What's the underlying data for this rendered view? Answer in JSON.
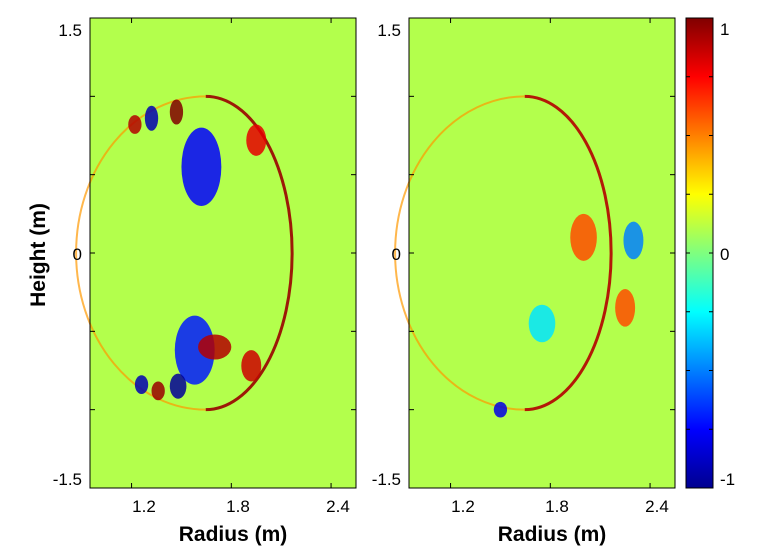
{
  "chart_data": [
    {
      "type": "heatmap",
      "title": "",
      "xlabel": "Radius (m)",
      "ylabel": "Height (m)",
      "xlim": [
        0.95,
        2.55
      ],
      "ylim": [
        -1.5,
        1.5
      ],
      "xticks": [
        1.2,
        1.8,
        2.4
      ],
      "yticks": [
        -1.5,
        0,
        1.5
      ],
      "colormap": "jet",
      "clim": [
        -1,
        1
      ],
      "background_value": 0.1,
      "features": [
        {
          "kind": "ring",
          "cx": 1.75,
          "cy": 0,
          "r_outer": 2.27,
          "top": 1.0,
          "value": 0.95
        },
        {
          "kind": "blob",
          "x": 1.95,
          "y": 0.72,
          "sx": 0.06,
          "sy": 0.1,
          "value": 0.8
        },
        {
          "kind": "blob",
          "x": 1.92,
          "y": -0.72,
          "sx": 0.06,
          "sy": 0.1,
          "value": 0.85
        },
        {
          "kind": "blob",
          "x": 1.62,
          "y": 0.55,
          "sx": 0.12,
          "sy": 0.25,
          "value": -0.75
        },
        {
          "kind": "blob",
          "x": 1.58,
          "y": -0.62,
          "sx": 0.12,
          "sy": 0.22,
          "value": -0.7
        },
        {
          "kind": "blob",
          "x": 1.47,
          "y": 0.9,
          "sx": 0.04,
          "sy": 0.08,
          "value": 1.0
        },
        {
          "kind": "blob",
          "x": 1.32,
          "y": 0.86,
          "sx": 0.04,
          "sy": 0.08,
          "value": -0.9
        },
        {
          "kind": "blob",
          "x": 1.22,
          "y": 0.82,
          "sx": 0.04,
          "sy": 0.06,
          "value": 0.9
        },
        {
          "kind": "blob",
          "x": 1.48,
          "y": -0.85,
          "sx": 0.05,
          "sy": 0.08,
          "value": -0.95
        },
        {
          "kind": "blob",
          "x": 1.36,
          "y": -0.88,
          "sx": 0.04,
          "sy": 0.06,
          "value": 0.95
        },
        {
          "kind": "blob",
          "x": 1.26,
          "y": -0.84,
          "sx": 0.04,
          "sy": 0.06,
          "value": -0.9
        },
        {
          "kind": "blob",
          "x": 1.7,
          "y": -0.6,
          "sx": 0.1,
          "sy": 0.08,
          "value": 0.9
        }
      ]
    },
    {
      "type": "heatmap",
      "title": "",
      "xlabel": "Radius (m)",
      "ylabel": "",
      "xlim": [
        0.95,
        2.55
      ],
      "ylim": [
        -1.5,
        1.5
      ],
      "xticks": [
        1.2,
        1.8,
        2.4
      ],
      "yticks": [
        -1.5,
        0,
        1.5
      ],
      "colormap": "jet",
      "clim": [
        -1,
        1
      ],
      "background_value": 0.1,
      "features": [
        {
          "kind": "ring",
          "cx": 1.75,
          "cy": 0,
          "r_outer": 2.27,
          "top": 1.0,
          "value": 0.9
        },
        {
          "kind": "blob",
          "x": 2.0,
          "y": 0.1,
          "sx": 0.08,
          "sy": 0.15,
          "value": 0.6
        },
        {
          "kind": "blob",
          "x": 2.3,
          "y": 0.08,
          "sx": 0.06,
          "sy": 0.12,
          "value": -0.5
        },
        {
          "kind": "blob",
          "x": 2.25,
          "y": -0.35,
          "sx": 0.06,
          "sy": 0.12,
          "value": 0.6
        },
        {
          "kind": "blob",
          "x": 1.75,
          "y": -0.45,
          "sx": 0.08,
          "sy": 0.12,
          "value": -0.3
        },
        {
          "kind": "blob",
          "x": 1.5,
          "y": -1.0,
          "sx": 0.04,
          "sy": 0.05,
          "value": -0.8
        }
      ]
    }
  ],
  "colorbar": {
    "ticks": [
      {
        "label": "1",
        "value": 1
      },
      {
        "label": "0",
        "value": 0
      },
      {
        "label": "-1",
        "value": -1
      }
    ]
  },
  "labels": {
    "left_ylabel": "Height (m)",
    "left_xlabel": "Radius (m)",
    "right_xlabel": "Radius (m)",
    "left_y_top": "1.5",
    "left_y_mid": "0",
    "left_y_bot": "-1.5",
    "right_y_top": "1.5",
    "right_y_mid": "0",
    "right_y_bot": "-1.5",
    "left_x1": "1.2",
    "left_x2": "1.8",
    "left_x3": "2.4",
    "right_x1": "1.2",
    "right_x2": "1.8",
    "right_x3": "2.4",
    "cb_top": "1",
    "cb_mid": "0",
    "cb_bot": "-1"
  }
}
